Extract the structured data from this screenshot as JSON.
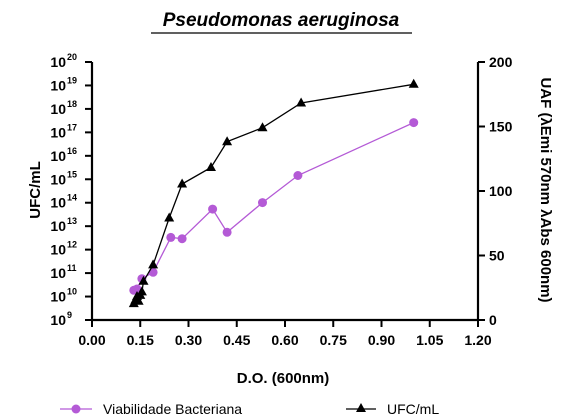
{
  "chart_data": {
    "type": "line",
    "title": "Pseudomonas aeruginosa",
    "xlabel": "D.O. (600nm)",
    "ylabel_left": "UFC/mL",
    "ylabel_right": "UAF (λEmi 570nm λAbs 600nm)",
    "xlim": [
      0,
      1.2
    ],
    "x_ticks": [
      "0.00",
      "0.15",
      "0.30",
      "0.45",
      "0.60",
      "0.75",
      "0.90",
      "1.05",
      "1.20"
    ],
    "ylim_left_log10": [
      9,
      20
    ],
    "y_left_ticks": [
      {
        "base": "10",
        "exp": "20"
      },
      {
        "base": "10",
        "exp": "19"
      },
      {
        "base": "10",
        "exp": "18"
      },
      {
        "base": "10",
        "exp": "17"
      },
      {
        "base": "10",
        "exp": "16"
      },
      {
        "base": "10",
        "exp": "15"
      },
      {
        "base": "10",
        "exp": "14"
      },
      {
        "base": "10",
        "exp": "13"
      },
      {
        "base": "10",
        "exp": "12"
      },
      {
        "base": "10",
        "exp": "11"
      },
      {
        "base": "10",
        "exp": "10"
      },
      {
        "base": "10",
        "exp": "9"
      }
    ],
    "ylim_right": [
      0,
      200
    ],
    "y_right_ticks": [
      "0",
      "50",
      "100",
      "150",
      "200"
    ],
    "series": [
      {
        "name": "Viabilidade Bacteriana",
        "axis": "right",
        "color": "#b45ad6",
        "marker": "circle",
        "x": [
          0.13,
          0.14,
          0.155,
          0.19,
          0.245,
          0.28,
          0.375,
          0.42,
          0.53,
          0.64,
          1.0
        ],
        "y": [
          23,
          24,
          32,
          37,
          64,
          63,
          86,
          68,
          91,
          112,
          153
        ]
      },
      {
        "name": "UFC/mL",
        "axis": "left",
        "color": "#000000",
        "marker": "triangle",
        "x": [
          0.13,
          0.135,
          0.14,
          0.145,
          0.15,
          0.155,
          0.16,
          0.19,
          0.24,
          0.28,
          0.37,
          0.42,
          0.53,
          0.65,
          1.0
        ],
        "y_log10": [
          9.7,
          9.85,
          10.0,
          9.8,
          10.05,
          10.2,
          10.65,
          11.35,
          13.35,
          14.8,
          15.5,
          16.6,
          17.2,
          18.25,
          19.05
        ]
      }
    ],
    "legend_position": "bottom"
  }
}
